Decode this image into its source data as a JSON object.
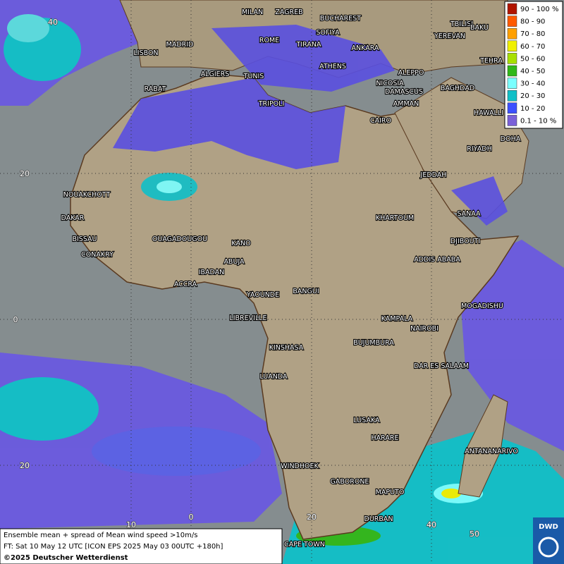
{
  "legend": {
    "items": [
      {
        "label": "90 - 100 %",
        "color": "#b01400"
      },
      {
        "label": "80 - 90",
        "color": "#ff5a00"
      },
      {
        "label": "70 - 80",
        "color": "#ffa000"
      },
      {
        "label": "60 - 70",
        "color": "#f0f000"
      },
      {
        "label": "50 - 60",
        "color": "#a8e000"
      },
      {
        "label": "40 - 50",
        "color": "#30b818"
      },
      {
        "label": "30 - 40",
        "color": "#7affff"
      },
      {
        "label": "20 - 30",
        "color": "#10c0c8"
      },
      {
        "label": "10 - 20",
        "color": "#3c50ff"
      },
      {
        "label": "0.1 - 10 %",
        "color": "#7a60d8"
      }
    ]
  },
  "grid_labels": {
    "latitude": [
      "40",
      "20",
      "0",
      "20"
    ],
    "longitude": [
      "10",
      "0",
      "20",
      "40",
      "50"
    ]
  },
  "cities": [
    "MILAN",
    "ZAGREB",
    "BUCHAREST",
    "TBILISI",
    "BAKU",
    "SOFIYA",
    "YEREVAN",
    "MADRID",
    "ROME",
    "TIRANA",
    "ANKARA",
    "TEHRA",
    "LISBON",
    "ATHENS",
    "ALGIERS",
    "TUNIS",
    "ALEPPO",
    "RABAT",
    "NICOSIA",
    "BAGHDAD",
    "DAMASCUS",
    "AMMAN",
    "TRIPOLI",
    "HAWALLI",
    "CAIRO",
    "DOHA",
    "RIYADH",
    "JEDDAH",
    "NOUAKCHOTT",
    "SANAA",
    "DAKAR",
    "KHARTOUM",
    "BISSAU",
    "DJIBOUTI",
    "OUAGADOUGOU",
    "KANO",
    "CONAKRY",
    "ADDIS ABABA",
    "ABUJA",
    "IBADAN",
    "ACCRA",
    "MOGADISHU",
    "YAOUNDE",
    "BANGUI",
    "LIBREVILLE",
    "KAMPALA",
    "NAIROBI",
    "KINSHASA",
    "BUJUMBURA",
    "DAR ES SALAAM",
    "LUANDA",
    "LUSAKA",
    "HARARE",
    "ANTANANARIVO",
    "WINDHOEK",
    "GABORONE",
    "MAPUTO",
    "DURBAN",
    "CAPE TOWN"
  ],
  "footer": {
    "line1": "Ensemble mean + spread of Mean wind speed >10m/s",
    "line2": "FT: Sat 10 May 12 UTC [ICON EPS 2025 May 03 00UTC +180h]",
    "line3": "©2025 Deutscher Wetterdienst"
  },
  "logo": "DWD"
}
